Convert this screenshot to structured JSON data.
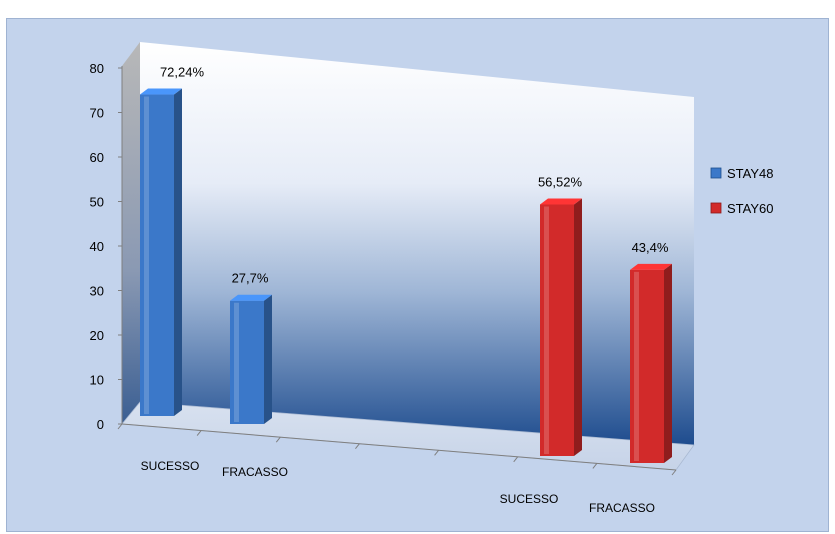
{
  "chart_data": {
    "type": "bar",
    "style": "3d-clustered-column",
    "title": "",
    "xlabel": "",
    "ylabel": "",
    "ylim": [
      0,
      80
    ],
    "yticks": [
      0,
      10,
      20,
      30,
      40,
      50,
      60,
      70,
      80
    ],
    "grid": false,
    "legend_position": "right",
    "series": [
      {
        "name": "STAY48",
        "color": "#3b78c9",
        "categories": [
          "SUCESSO",
          "FRACASSO"
        ],
        "values": [
          72.24,
          27.7
        ],
        "labels": [
          "72,24%",
          "27,7%"
        ]
      },
      {
        "name": "STAY60",
        "color": "#d22a2a",
        "categories": [
          "SUCESSO",
          "FRACASSO"
        ],
        "values": [
          56.52,
          43.4
        ],
        "labels": [
          "56,52%",
          "43,4%"
        ]
      }
    ]
  }
}
